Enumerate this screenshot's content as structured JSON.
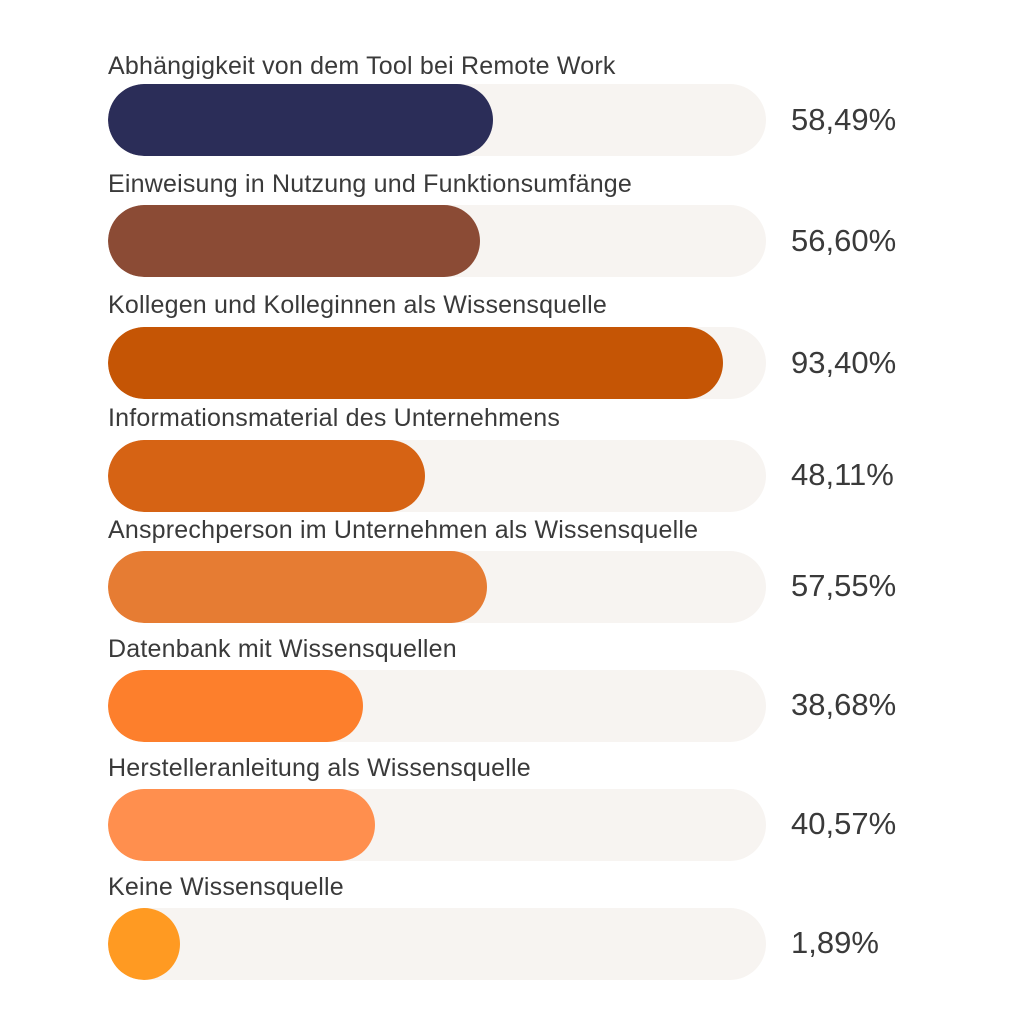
{
  "chart_data": {
    "type": "bar",
    "orientation": "horizontal",
    "categories": [
      "Abhängigkeit von dem Tool bei Remote Work",
      "Einweisung in Nutzung und Funktionsumfänge",
      "Kollegen und Kolleginnen als Wissensquelle",
      "Informationsmaterial des Unternehmens",
      "Ansprechperson im Unternehmen als Wissensquelle",
      "Datenbank mit Wissensquellen",
      "Herstelleranleitung als Wissensquelle",
      "Keine Wissensquelle"
    ],
    "values": [
      58.49,
      56.6,
      93.4,
      48.11,
      57.55,
      38.68,
      40.57,
      1.89
    ],
    "value_labels": [
      "58,49%",
      "56,60%",
      "93,40%",
      "48,11%",
      "57,55%",
      "38,68%",
      "40,57%",
      "1,89%"
    ],
    "colors": [
      "#2b2d58",
      "#8b4b35",
      "#c55505",
      "#d66314",
      "#e67c33",
      "#fd7f2c",
      "#ff8f4e",
      "#ff9a22"
    ],
    "track_color": "#f7f4f1",
    "xlim": [
      0,
      100
    ],
    "grid": false,
    "legend": "none"
  }
}
